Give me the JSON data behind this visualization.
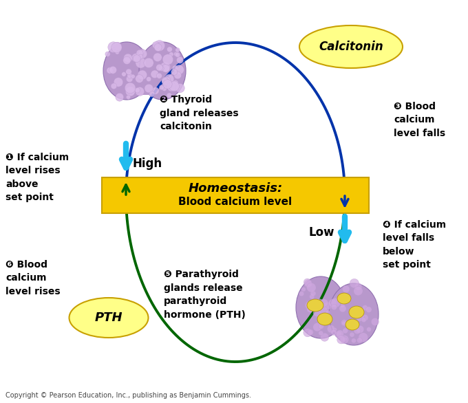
{
  "background_color": "#ffffff",
  "homeostasis_text_line1": "Homeostasis:",
  "homeostasis_text_line2": "Blood calcium level",
  "homeostasis_box_color": "#F5C800",
  "homeostasis_text_color": "#000000",
  "calcitonin_label": "Calcitonin",
  "calcitonin_ellipse_color": "#FFFF88",
  "pth_label": "PTH",
  "pth_ellipse_color": "#FFFF88",
  "high_label": "High",
  "low_label": "Low",
  "step1_text": "❶ If calcium\nlevel rises\nabove\nset point",
  "step2_text": "❷ Thyroid\ngland releases\ncalcitonin",
  "step3_text": "❸ Blood\ncalcium\nlevel falls",
  "step4_text": "❹ If calcium\nlevel falls\nbelow\nset point",
  "step5_text": "❺ Parathyroid\nglands release\nparathyroid\nhormone (PTH)",
  "step6_text": "❻ Blood\ncalcium\nlevel rises",
  "upper_arc_color": "#0033AA",
  "lower_arc_color": "#006600",
  "arrow_blue_color": "#22BBEE",
  "copyright_text": "Copyright © Pearson Education, Inc., publishing as Benjamin Cummings.",
  "copyright_fontsize": 7,
  "thyroid_color": "#B898CC",
  "thyroid_dot_color": "#D8B8E8",
  "parathyroid_color": "#B898CC",
  "parathyroid_dot_color": "#D0A8E0",
  "parathyroid_spot_color": "#E8D040"
}
